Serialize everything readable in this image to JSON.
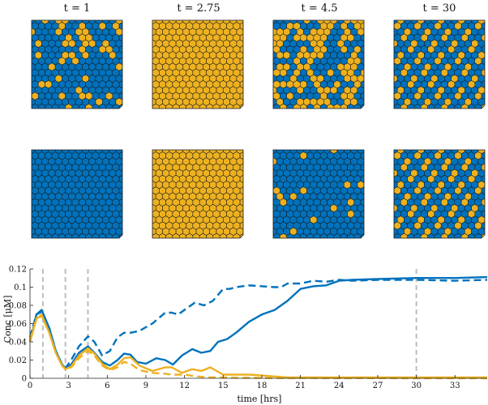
{
  "panels": {
    "titles": [
      "t = 1",
      "t = 2.75",
      "t = 4.5",
      "t = 30"
    ],
    "colors": {
      "blue": "#0072BD",
      "orange": "#EDB120",
      "outline": "#1a1a1a"
    },
    "rows": [
      {
        "states": [
          "mixed-mostly-blue",
          "all-orange",
          "mixed-even",
          "ordered-pattern"
        ]
      },
      {
        "states": [
          "all-blue",
          "all-orange",
          "mostly-blue-sparse-orange",
          "ordered-pattern"
        ]
      }
    ]
  },
  "chart_data": {
    "type": "line",
    "xlabel": "time [hrs]",
    "ylabel": "Conc [μM]",
    "xlim": [
      0,
      35.5
    ],
    "ylim": [
      0,
      0.12
    ],
    "xticks": [
      0,
      3,
      6,
      9,
      12,
      15,
      18,
      21,
      24,
      27,
      30,
      33
    ],
    "yticks": [
      0,
      0.02,
      0.04,
      0.06,
      0.08,
      0.1,
      0.12
    ],
    "ytick_labels": [
      "0",
      "0.02",
      "0.04",
      "0.06",
      "0.08",
      "0.1",
      "0.12"
    ],
    "vlines": [
      1,
      2.75,
      4.5,
      30
    ],
    "series": [
      {
        "color": "#0072BD",
        "style": "solid",
        "x": [
          0,
          0.5,
          0.9,
          1.5,
          2.0,
          2.5,
          2.75,
          3.2,
          3.8,
          4.5,
          5.0,
          5.6,
          6.2,
          6.8,
          7.3,
          7.8,
          8.3,
          9.0,
          9.8,
          10.5,
          11.1,
          11.8,
          12.6,
          13.3,
          14.0,
          14.6,
          15.3,
          16.0,
          17.0,
          18.0,
          19.0,
          20.0,
          21.0,
          22.0,
          23.0,
          24.0,
          25.0,
          27.0,
          30.0,
          33.0,
          35.5
        ],
        "y": [
          0.04,
          0.07,
          0.075,
          0.055,
          0.03,
          0.015,
          0.011,
          0.015,
          0.028,
          0.035,
          0.028,
          0.018,
          0.014,
          0.02,
          0.027,
          0.026,
          0.018,
          0.016,
          0.022,
          0.02,
          0.015,
          0.025,
          0.032,
          0.028,
          0.03,
          0.04,
          0.043,
          0.05,
          0.062,
          0.07,
          0.075,
          0.085,
          0.098,
          0.101,
          0.102,
          0.107,
          0.108,
          0.109,
          0.11,
          0.11,
          0.111
        ]
      },
      {
        "color": "#0072BD",
        "style": "dashed",
        "x": [
          0,
          0.5,
          0.9,
          1.5,
          2.0,
          2.5,
          2.75,
          3.2,
          3.8,
          4.5,
          5.0,
          5.6,
          6.2,
          6.8,
          7.3,
          7.8,
          8.5,
          9.5,
          10.5,
          11.0,
          11.5,
          12.0,
          12.8,
          13.5,
          14.2,
          15.0,
          15.5,
          16.0,
          17.0,
          18.0,
          19.0,
          19.5,
          20.0,
          21.0,
          22.0,
          23.0,
          24.0,
          25.0,
          27.0,
          30.0,
          33.0,
          35.5
        ],
        "y": [
          0.045,
          0.07,
          0.073,
          0.055,
          0.03,
          0.015,
          0.011,
          0.02,
          0.035,
          0.046,
          0.04,
          0.025,
          0.03,
          0.045,
          0.05,
          0.05,
          0.052,
          0.06,
          0.072,
          0.072,
          0.07,
          0.075,
          0.083,
          0.08,
          0.085,
          0.098,
          0.098,
          0.1,
          0.102,
          0.101,
          0.1,
          0.1,
          0.104,
          0.104,
          0.107,
          0.106,
          0.108,
          0.107,
          0.108,
          0.108,
          0.107,
          0.108
        ]
      },
      {
        "color": "#EDB120",
        "style": "solid",
        "x": [
          0,
          0.5,
          0.9,
          1.5,
          2.0,
          2.5,
          2.75,
          3.2,
          3.8,
          4.5,
          5.0,
          5.6,
          6.2,
          6.8,
          7.3,
          7.8,
          8.5,
          9.5,
          10.5,
          11.0,
          11.8,
          12.6,
          13.3,
          14.0,
          15.0,
          16.0,
          17.0,
          18.0,
          19.0,
          20.0,
          22.0,
          25.0,
          30.0,
          35.5
        ],
        "y": [
          0.04,
          0.065,
          0.07,
          0.05,
          0.028,
          0.014,
          0.01,
          0.013,
          0.025,
          0.033,
          0.027,
          0.016,
          0.01,
          0.015,
          0.022,
          0.023,
          0.014,
          0.008,
          0.012,
          0.012,
          0.006,
          0.01,
          0.008,
          0.012,
          0.004,
          0.004,
          0.004,
          0.003,
          0.002,
          0.001,
          0.001,
          0.001,
          0.001,
          0.001
        ]
      },
      {
        "color": "#EDB120",
        "style": "dashed",
        "x": [
          0,
          0.5,
          0.9,
          1.5,
          2.0,
          2.5,
          2.75,
          3.2,
          3.8,
          4.5,
          5.0,
          5.6,
          6.2,
          6.8,
          7.3,
          7.8,
          8.5,
          9.5,
          10.5,
          11.0,
          12.0,
          13.0,
          14.0,
          15.0,
          16.0,
          18.0,
          20.0,
          25.0,
          30.0,
          35.5
        ],
        "y": [
          0.042,
          0.066,
          0.068,
          0.05,
          0.028,
          0.014,
          0.01,
          0.012,
          0.022,
          0.03,
          0.025,
          0.014,
          0.009,
          0.012,
          0.018,
          0.016,
          0.009,
          0.006,
          0.005,
          0.004,
          0.004,
          0.002,
          0.001,
          0.001,
          0.0005,
          0.0004,
          0.0003,
          0.0002,
          0.0001,
          0.0001
        ]
      }
    ]
  }
}
